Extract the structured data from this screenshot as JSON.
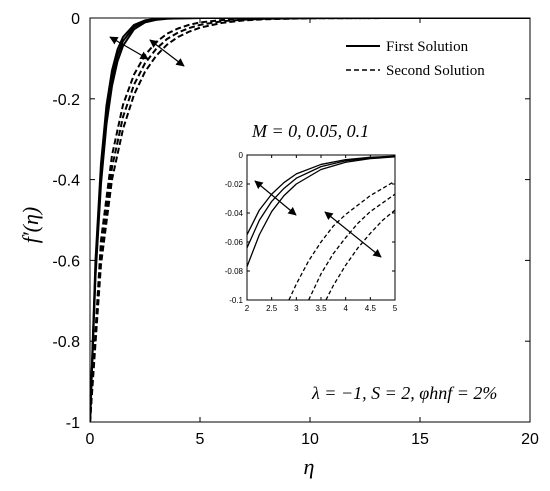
{
  "chart_data": [
    {
      "type": "line",
      "xlabel": "η",
      "ylabel": "f′(η)",
      "xlim": [
        0,
        20
      ],
      "ylim": [
        -1,
        0
      ],
      "xticks": [
        "0",
        "5",
        "10",
        "15",
        "20"
      ],
      "yticks": [
        "0",
        "-0.2",
        "-0.4",
        "-0.6",
        "-0.8",
        "-1"
      ],
      "legend": {
        "placement": "top-right",
        "entries": [
          {
            "label": "First Solution",
            "style": "solid"
          },
          {
            "label": "Second Solution",
            "style": "dashed"
          }
        ]
      },
      "annotations": {
        "parameter_label": "M = 0, 0.05, 0.1",
        "conditions_label": "λ = −1, S = 2, φhnf = 2%"
      },
      "series": [
        {
          "style": "solid",
          "x": [
            0,
            0.25,
            0.5,
            0.75,
            1,
            1.25,
            1.5,
            2,
            2.5,
            3,
            3.5,
            4,
            5,
            6,
            8,
            12,
            20
          ],
          "y": [
            -1,
            -0.6,
            -0.36,
            -0.216,
            -0.13,
            -0.078,
            -0.047,
            -0.017,
            -0.006,
            -0.002,
            -0.0008,
            -0.0003,
            0,
            0,
            0,
            0,
            0
          ]
        },
        {
          "style": "solid",
          "x": [
            0,
            0.25,
            0.5,
            0.75,
            1,
            1.25,
            1.5,
            2,
            2.5,
            3,
            3.5,
            4,
            5,
            6,
            8,
            12,
            20
          ],
          "y": [
            -1,
            -0.62,
            -0.385,
            -0.24,
            -0.148,
            -0.092,
            -0.057,
            -0.022,
            -0.008,
            -0.003,
            -0.0012,
            -0.0005,
            0,
            0,
            0,
            0,
            0
          ]
        },
        {
          "style": "solid",
          "x": [
            0,
            0.25,
            0.5,
            0.75,
            1,
            1.25,
            1.5,
            2,
            2.5,
            3,
            3.5,
            4,
            5,
            6,
            8,
            12,
            20
          ],
          "y": [
            -1,
            -0.64,
            -0.41,
            -0.262,
            -0.168,
            -0.107,
            -0.069,
            -0.028,
            -0.011,
            -0.0046,
            -0.0019,
            -0.0008,
            -0.0001,
            0,
            0,
            0,
            0
          ]
        },
        {
          "style": "dashed",
          "x": [
            0,
            0.5,
            1,
            1.5,
            2,
            2.5,
            3,
            3.5,
            4,
            4.5,
            5,
            6,
            7,
            8,
            10,
            14,
            20
          ],
          "y": [
            -1,
            -0.55,
            -0.34,
            -0.215,
            -0.14,
            -0.092,
            -0.06,
            -0.039,
            -0.026,
            -0.017,
            -0.011,
            -0.005,
            -0.002,
            -0.001,
            0,
            0,
            0
          ]
        },
        {
          "style": "dashed",
          "x": [
            0,
            0.5,
            1,
            1.5,
            2,
            2.5,
            3,
            3.5,
            4,
            4.5,
            5,
            6,
            7,
            8,
            10,
            14,
            20
          ],
          "y": [
            -1,
            -0.58,
            -0.37,
            -0.245,
            -0.165,
            -0.112,
            -0.077,
            -0.052,
            -0.036,
            -0.025,
            -0.017,
            -0.008,
            -0.004,
            -0.002,
            -0.0005,
            0,
            0
          ]
        },
        {
          "style": "dashed",
          "x": [
            0,
            0.5,
            1,
            1.5,
            2,
            2.5,
            3,
            3.5,
            4,
            4.5,
            5,
            6,
            7,
            8,
            10,
            14,
            20
          ],
          "y": [
            -1,
            -0.61,
            -0.4,
            -0.275,
            -0.19,
            -0.133,
            -0.094,
            -0.066,
            -0.047,
            -0.034,
            -0.024,
            -0.012,
            -0.006,
            -0.003,
            -0.0008,
            0,
            0
          ]
        }
      ]
    },
    {
      "type": "line",
      "role": "inset",
      "xlim": [
        2,
        5
      ],
      "ylim": [
        -0.1,
        0
      ],
      "xticks": [
        "2",
        "2.5",
        "3",
        "3.5",
        "4",
        "4.5",
        "5"
      ],
      "yticks": [
        "0",
        "-0.02",
        "-0.04",
        "-0.06",
        "-0.08",
        "-0.1"
      ],
      "series": [
        {
          "style": "solid",
          "x": [
            2,
            2.25,
            2.5,
            2.75,
            3,
            3.5,
            4,
            4.5,
            5
          ],
          "y": [
            -0.055,
            -0.038,
            -0.027,
            -0.019,
            -0.013,
            -0.0065,
            -0.0032,
            -0.0016,
            -0.0008
          ]
        },
        {
          "style": "solid",
          "x": [
            2,
            2.25,
            2.5,
            2.75,
            3,
            3.5,
            4,
            4.5,
            5
          ],
          "y": [
            -0.064,
            -0.045,
            -0.032,
            -0.023,
            -0.016,
            -0.008,
            -0.004,
            -0.002,
            -0.001
          ]
        },
        {
          "style": "solid",
          "x": [
            2,
            2.25,
            2.5,
            2.75,
            3,
            3.5,
            4,
            4.5,
            5
          ],
          "y": [
            -0.077,
            -0.055,
            -0.039,
            -0.028,
            -0.02,
            -0.01,
            -0.005,
            -0.0025,
            -0.0013
          ]
        },
        {
          "style": "dashed",
          "x": [
            2.85,
            3,
            3.25,
            3.5,
            3.75,
            4,
            4.5,
            5
          ],
          "y": [
            -0.1,
            -0.089,
            -0.073,
            -0.06,
            -0.049,
            -0.041,
            -0.028,
            -0.018
          ]
        },
        {
          "style": "dashed",
          "x": [
            3.25,
            3.5,
            3.75,
            4,
            4.25,
            4.5,
            5
          ],
          "y": [
            -0.1,
            -0.082,
            -0.068,
            -0.057,
            -0.047,
            -0.039,
            -0.027
          ]
        },
        {
          "style": "dashed",
          "x": [
            3.6,
            3.75,
            4,
            4.25,
            4.5,
            4.75,
            5
          ],
          "y": [
            -0.1,
            -0.09,
            -0.076,
            -0.064,
            -0.054,
            -0.045,
            -0.038
          ]
        }
      ]
    }
  ]
}
